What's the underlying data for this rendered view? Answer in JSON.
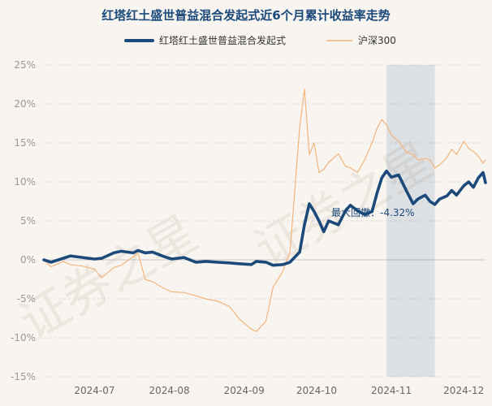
{
  "chart_data": {
    "type": "line",
    "title": "红塔红土盛世普益混合发起式近6个月累计收益率走势",
    "watermark": "证券之星",
    "x_ticks": [
      "2024-07",
      "2024-08",
      "2024-09",
      "2024-10",
      "2024-11",
      "2024-12"
    ],
    "x_range": [
      "2024-06-24",
      "2024-12-24"
    ],
    "y_ticks": [
      "25%",
      "20%",
      "15%",
      "10%",
      "5%",
      "0%",
      "-5%",
      "-10%",
      "-15%"
    ],
    "ylim": [
      -15,
      25
    ],
    "grid": true,
    "legend_position": "top",
    "max_drawdown": {
      "label": "最大回撤：",
      "value": "-4.32%",
      "start": "2024-11-13",
      "end": "2024-12-03"
    },
    "series": [
      {
        "name": "红塔红土盛世普益混合发起式",
        "color": "#1b4a7a",
        "points": [
          [
            "2024-06-24",
            0.0
          ],
          [
            "2024-06-27",
            -0.3
          ],
          [
            "2024-07-02",
            0.2
          ],
          [
            "2024-07-05",
            0.5
          ],
          [
            "2024-07-10",
            0.3
          ],
          [
            "2024-07-15",
            0.1
          ],
          [
            "2024-07-18",
            0.2
          ],
          [
            "2024-07-23",
            0.9
          ],
          [
            "2024-07-26",
            1.1
          ],
          [
            "2024-07-31",
            0.9
          ],
          [
            "2024-08-02",
            1.2
          ],
          [
            "2024-08-05",
            0.9
          ],
          [
            "2024-08-08",
            1.0
          ],
          [
            "2024-08-13",
            0.4
          ],
          [
            "2024-08-16",
            0.1
          ],
          [
            "2024-08-21",
            0.3
          ],
          [
            "2024-08-26",
            -0.3
          ],
          [
            "2024-08-30",
            -0.2
          ],
          [
            "2024-09-04",
            -0.3
          ],
          [
            "2024-09-09",
            -0.4
          ],
          [
            "2024-09-13",
            -0.5
          ],
          [
            "2024-09-18",
            -0.6
          ],
          [
            "2024-09-20",
            -0.2
          ],
          [
            "2024-09-24",
            -0.3
          ],
          [
            "2024-09-27",
            -0.7
          ],
          [
            "2024-10-01",
            -0.6
          ],
          [
            "2024-10-04",
            -0.3
          ],
          [
            "2024-10-08",
            1.0
          ],
          [
            "2024-10-10",
            4.5
          ],
          [
            "2024-10-12",
            7.2
          ],
          [
            "2024-10-14",
            6.2
          ],
          [
            "2024-10-16",
            5.0
          ],
          [
            "2024-10-18",
            3.6
          ],
          [
            "2024-10-20",
            5.0
          ],
          [
            "2024-10-24",
            4.5
          ],
          [
            "2024-10-27",
            6.3
          ],
          [
            "2024-10-29",
            7.0
          ],
          [
            "2024-11-01",
            6.3
          ],
          [
            "2024-11-04",
            5.8
          ],
          [
            "2024-11-07",
            6.2
          ],
          [
            "2024-11-09",
            8.5
          ],
          [
            "2024-11-11",
            10.5
          ],
          [
            "2024-11-13",
            11.4
          ],
          [
            "2024-11-15",
            10.6
          ],
          [
            "2024-11-18",
            10.9
          ],
          [
            "2024-11-21",
            9.0
          ],
          [
            "2024-11-24",
            7.2
          ],
          [
            "2024-11-26",
            7.8
          ],
          [
            "2024-11-29",
            8.3
          ],
          [
            "2024-12-01",
            7.5
          ],
          [
            "2024-12-03",
            7.1
          ],
          [
            "2024-12-05",
            7.8
          ],
          [
            "2024-12-08",
            8.2
          ],
          [
            "2024-12-10",
            8.9
          ],
          [
            "2024-12-12",
            8.3
          ],
          [
            "2024-12-15",
            9.5
          ],
          [
            "2024-12-17",
            10.0
          ],
          [
            "2024-12-19",
            9.3
          ],
          [
            "2024-12-21",
            10.5
          ],
          [
            "2024-12-23",
            11.2
          ],
          [
            "2024-12-24",
            9.9
          ]
        ]
      },
      {
        "name": "沪深300",
        "color": "#f3b47a",
        "points": [
          [
            "2024-06-24",
            0.0
          ],
          [
            "2024-06-27",
            -0.9
          ],
          [
            "2024-07-02",
            -0.2
          ],
          [
            "2024-07-05",
            -0.6
          ],
          [
            "2024-07-10",
            -0.8
          ],
          [
            "2024-07-15",
            -1.2
          ],
          [
            "2024-07-18",
            -2.3
          ],
          [
            "2024-07-23",
            -1.0
          ],
          [
            "2024-07-26",
            -0.7
          ],
          [
            "2024-07-31",
            0.4
          ],
          [
            "2024-08-02",
            0.9
          ],
          [
            "2024-08-05",
            -2.5
          ],
          [
            "2024-08-08",
            -2.8
          ],
          [
            "2024-08-13",
            -3.7
          ],
          [
            "2024-08-16",
            -4.1
          ],
          [
            "2024-08-21",
            -4.2
          ],
          [
            "2024-08-26",
            -4.6
          ],
          [
            "2024-08-30",
            -5.0
          ],
          [
            "2024-09-04",
            -5.3
          ],
          [
            "2024-09-09",
            -6.0
          ],
          [
            "2024-09-13",
            -7.6
          ],
          [
            "2024-09-18",
            -8.9
          ],
          [
            "2024-09-20",
            -9.2
          ],
          [
            "2024-09-24",
            -7.9
          ],
          [
            "2024-09-27",
            -3.5
          ],
          [
            "2024-10-01",
            -1.5
          ],
          [
            "2024-10-04",
            1.0
          ],
          [
            "2024-10-08",
            17.0
          ],
          [
            "2024-10-10",
            21.9
          ],
          [
            "2024-10-12",
            13.5
          ],
          [
            "2024-10-14",
            15.0
          ],
          [
            "2024-10-16",
            11.2
          ],
          [
            "2024-10-18",
            11.6
          ],
          [
            "2024-10-20",
            12.5
          ],
          [
            "2024-10-24",
            13.6
          ],
          [
            "2024-10-27",
            12.0
          ],
          [
            "2024-10-29",
            11.8
          ],
          [
            "2024-11-01",
            11.2
          ],
          [
            "2024-11-04",
            12.9
          ],
          [
            "2024-11-07",
            15.0
          ],
          [
            "2024-11-09",
            16.8
          ],
          [
            "2024-11-11",
            18.0
          ],
          [
            "2024-11-13",
            17.3
          ],
          [
            "2024-11-15",
            16.0
          ],
          [
            "2024-11-18",
            15.2
          ],
          [
            "2024-11-21",
            13.9
          ],
          [
            "2024-11-24",
            13.5
          ],
          [
            "2024-11-26",
            12.8
          ],
          [
            "2024-11-29",
            13.0
          ],
          [
            "2024-12-01",
            12.8
          ],
          [
            "2024-12-03",
            11.8
          ],
          [
            "2024-12-05",
            12.2
          ],
          [
            "2024-12-08",
            13.1
          ],
          [
            "2024-12-10",
            14.2
          ],
          [
            "2024-12-12",
            13.5
          ],
          [
            "2024-12-15",
            15.2
          ],
          [
            "2024-12-17",
            14.3
          ],
          [
            "2024-12-19",
            13.9
          ],
          [
            "2024-12-21",
            13.3
          ],
          [
            "2024-12-23",
            12.4
          ],
          [
            "2024-12-24",
            12.8
          ]
        ]
      }
    ]
  }
}
